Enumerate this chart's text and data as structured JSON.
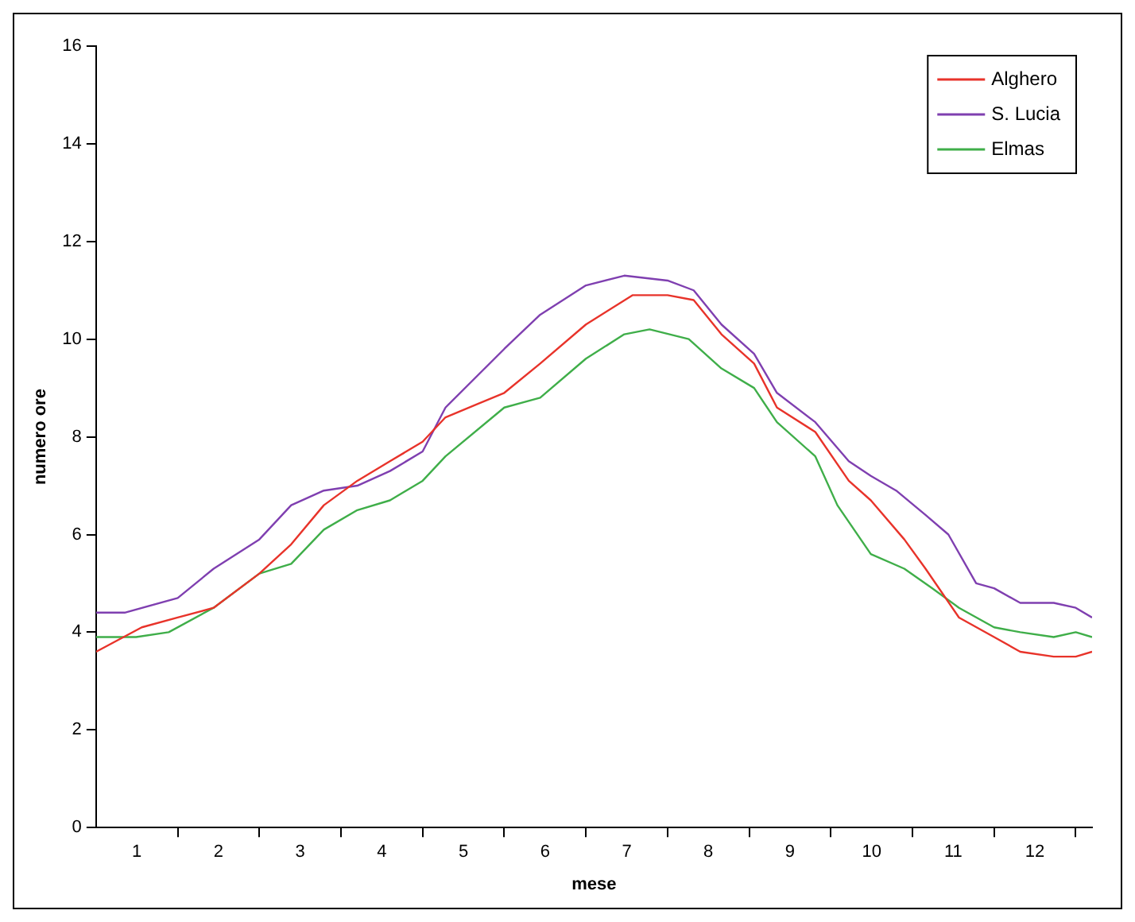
{
  "chart_data": {
    "type": "line",
    "xlabel": "mese",
    "ylabel": "numero ore",
    "xlim": [
      0.5,
      12.7
    ],
    "ylim": [
      0,
      16
    ],
    "yticks": [
      0,
      2,
      4,
      6,
      8,
      10,
      12,
      14,
      16
    ],
    "xticks": [
      {
        "value": 1,
        "label": "1"
      },
      {
        "value": 1.5,
        "label": null
      },
      {
        "value": 2,
        "label": "2"
      },
      {
        "value": 2.5,
        "label": null
      },
      {
        "value": 3,
        "label": "3"
      },
      {
        "value": 3.5,
        "label": null
      },
      {
        "value": 4,
        "label": "4"
      },
      {
        "value": 4.5,
        "label": null
      },
      {
        "value": 5,
        "label": "5"
      },
      {
        "value": 5.5,
        "label": null
      },
      {
        "value": 6,
        "label": "6"
      },
      {
        "value": 6.5,
        "label": null
      },
      {
        "value": 7,
        "label": "7"
      },
      {
        "value": 7.5,
        "label": null
      },
      {
        "value": 8,
        "label": "8"
      },
      {
        "value": 8.5,
        "label": null
      },
      {
        "value": 9,
        "label": "9"
      },
      {
        "value": 9.5,
        "label": null
      },
      {
        "value": 10,
        "label": "10"
      },
      {
        "value": 10.5,
        "label": null
      },
      {
        "value": 11,
        "label": "11"
      },
      {
        "value": 11.5,
        "label": null
      },
      {
        "value": 12,
        "label": "12"
      },
      {
        "value": 12.5,
        "label": null
      }
    ],
    "grid": false,
    "legend": "top right",
    "marker": "none",
    "line_style": "solid",
    "series": [
      {
        "name": "Alghero",
        "color": "#e8332a",
        "x": [
          0.5,
          1.06,
          1.5,
          1.94,
          2.5,
          2.89,
          3.29,
          3.7,
          4.1,
          4.5,
          4.78,
          5.5,
          5.94,
          6.5,
          7.07,
          7.5,
          7.82,
          8.16,
          8.56,
          8.84,
          9.31,
          9.72,
          9.99,
          10.4,
          10.66,
          11.07,
          11.5,
          11.82,
          12.23,
          12.5,
          12.7
        ],
        "values": [
          3.6,
          4.1,
          4.3,
          4.5,
          5.2,
          5.8,
          6.6,
          7.1,
          7.5,
          7.9,
          8.4,
          8.9,
          9.5,
          10.3,
          10.9,
          10.9,
          10.8,
          10.1,
          9.5,
          8.6,
          8.1,
          7.1,
          6.7,
          5.9,
          5.3,
          4.3,
          3.9,
          3.6,
          3.5,
          3.5,
          3.6
        ]
      },
      {
        "name": "S. Lucia",
        "color": "#7f3fb0",
        "x": [
          0.5,
          0.85,
          1.5,
          1.94,
          2.5,
          2.89,
          3.29,
          3.7,
          4.1,
          4.5,
          4.78,
          5.5,
          5.94,
          6.5,
          6.97,
          7.5,
          7.82,
          8.16,
          8.56,
          8.84,
          9.31,
          9.72,
          9.99,
          10.3,
          10.66,
          10.94,
          11.28,
          11.5,
          11.82,
          12.23,
          12.5,
          12.7
        ],
        "values": [
          4.4,
          4.4,
          4.7,
          5.3,
          5.9,
          6.6,
          6.9,
          7.0,
          7.3,
          7.7,
          8.6,
          9.8,
          10.5,
          11.1,
          11.3,
          11.2,
          11.0,
          10.3,
          9.7,
          8.9,
          8.3,
          7.5,
          7.2,
          6.9,
          6.4,
          6.0,
          5.0,
          4.9,
          4.6,
          4.6,
          4.5,
          4.3
        ]
      },
      {
        "name": "Elmas",
        "color": "#3fae49",
        "x": [
          0.5,
          0.99,
          1.39,
          1.94,
          2.5,
          2.89,
          3.29,
          3.7,
          4.1,
          4.5,
          4.78,
          5.5,
          5.94,
          6.5,
          6.97,
          7.28,
          7.76,
          8.16,
          8.56,
          8.84,
          9.31,
          9.58,
          9.99,
          10.4,
          10.74,
          11.07,
          11.5,
          11.82,
          12.23,
          12.5,
          12.7
        ],
        "values": [
          3.9,
          3.9,
          4.0,
          4.5,
          5.2,
          5.4,
          6.1,
          6.5,
          6.7,
          7.1,
          7.6,
          8.6,
          8.8,
          9.6,
          10.1,
          10.2,
          10.0,
          9.4,
          9.0,
          8.3,
          7.6,
          6.6,
          5.6,
          5.3,
          4.9,
          4.5,
          4.1,
          4.0,
          3.9,
          4.0,
          3.9
        ]
      }
    ]
  }
}
